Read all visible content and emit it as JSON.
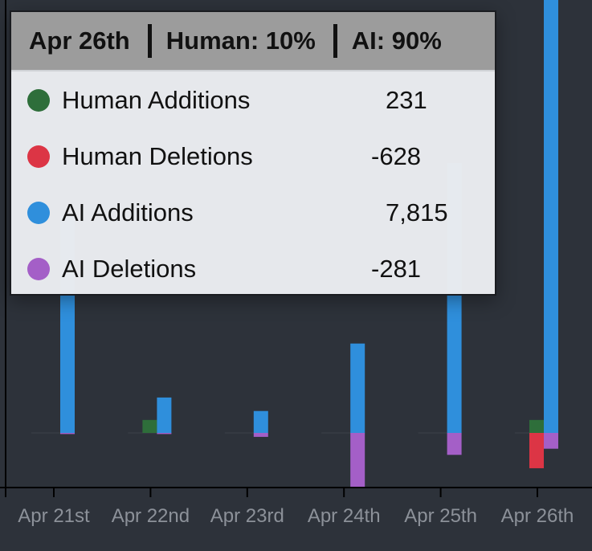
{
  "chart_data": {
    "type": "bar",
    "stacked_diverging": true,
    "categories": [
      "Apr 21st",
      "Apr 22nd",
      "Apr 23rd",
      "Apr 24th",
      "Apr 25th",
      "Apr 26th"
    ],
    "series": [
      {
        "name": "Human Additions",
        "color": "#2e6e3a",
        "values": [
          0,
          231,
          0,
          0,
          0,
          231
        ]
      },
      {
        "name": "Human Deletions",
        "color": "#dc3545",
        "values": [
          0,
          0,
          0,
          0,
          0,
          -628
        ]
      },
      {
        "name": "AI Additions",
        "color": "#2f8fdc",
        "values": [
          3850,
          630,
          390,
          1590,
          4800,
          7815
        ]
      },
      {
        "name": "AI Deletions",
        "color": "#a45fc7",
        "values": [
          -20,
          -20,
          -70,
          -970,
          -390,
          -281
        ]
      }
    ],
    "grid": false,
    "legend": "none",
    "axis_color": "#000000"
  },
  "tooltip": {
    "date": "Apr 26th",
    "human": "Human: 10%",
    "ai": "AI: 90%",
    "rows": [
      {
        "label": "Human Additions",
        "value": "231",
        "color": "#2e6e3a"
      },
      {
        "label": "Human Deletions",
        "value": "-628",
        "color": "#dc3545"
      },
      {
        "label": "AI Additions",
        "value": "7,815",
        "color": "#2f8fdc"
      },
      {
        "label": "AI Deletions",
        "value": "-281",
        "color": "#a45fc7"
      }
    ]
  }
}
